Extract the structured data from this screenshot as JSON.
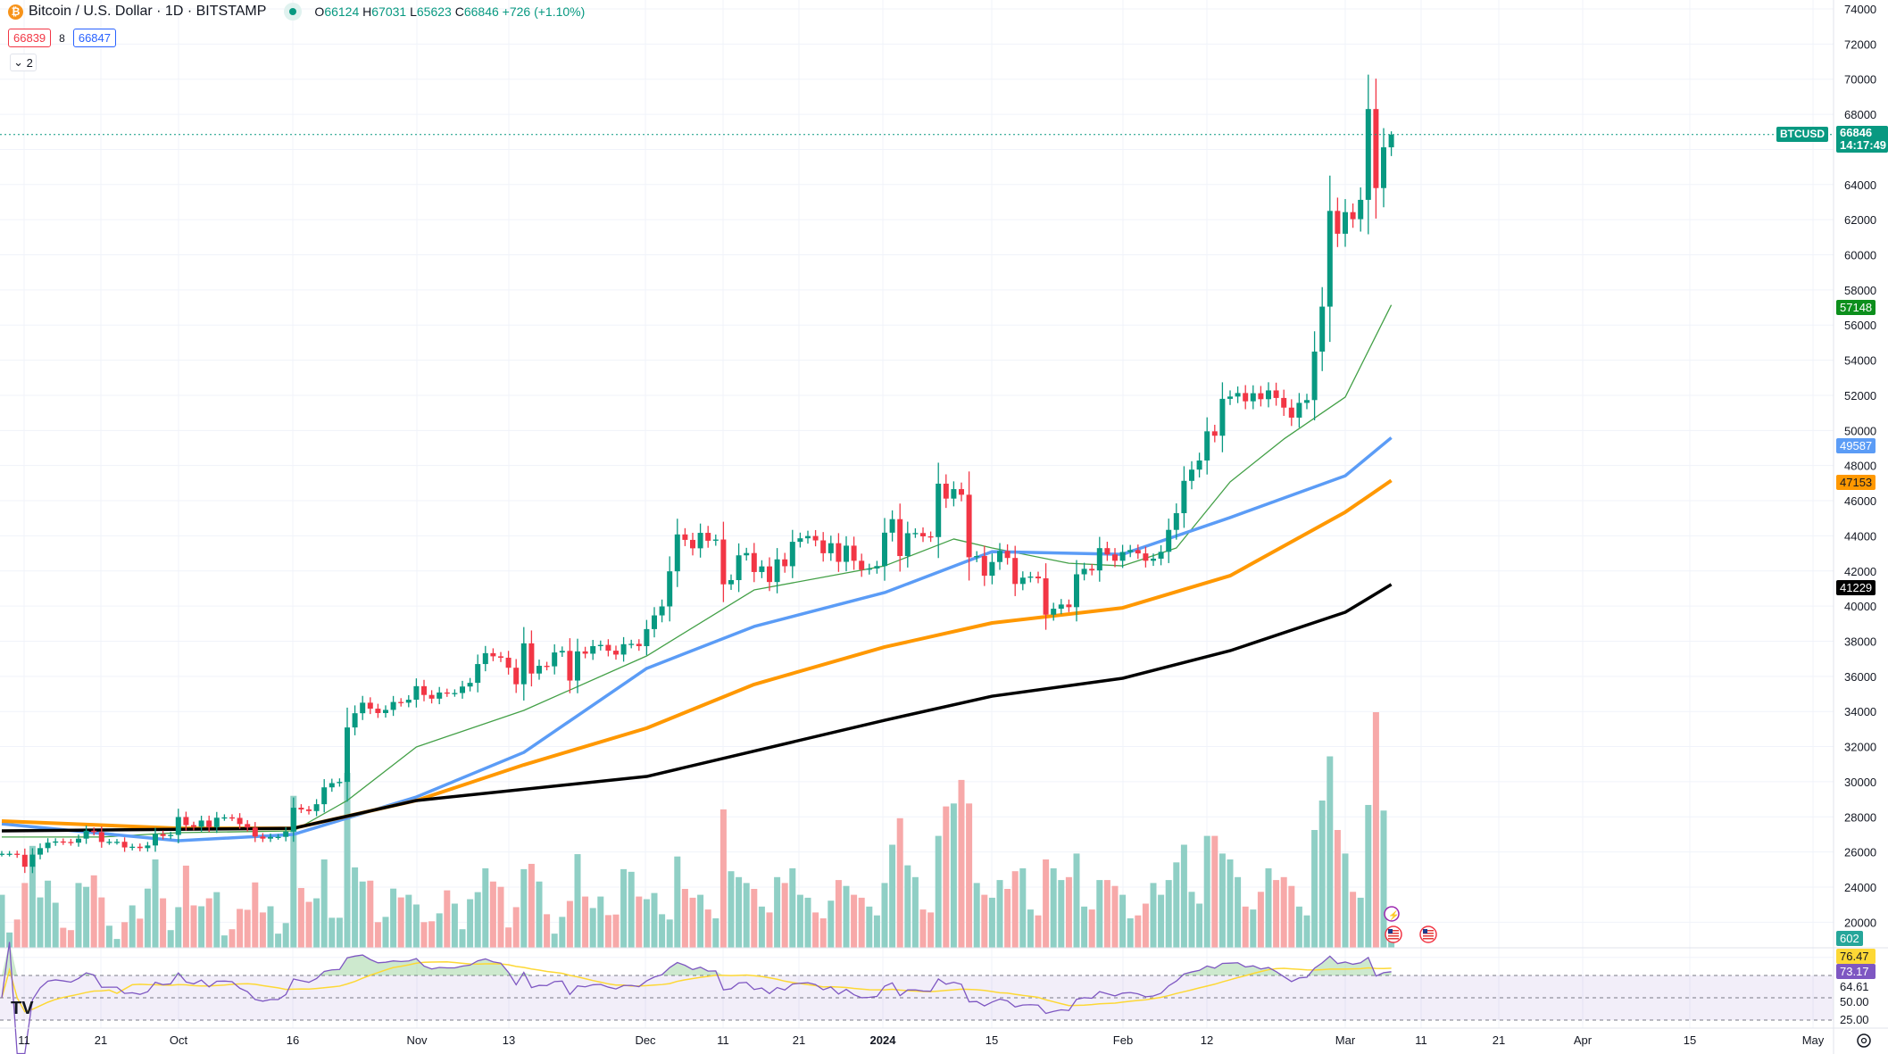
{
  "header": {
    "title": "Bitcoin / U.S. Dollar · 1D · BITSTAMP",
    "symbol_icon": "bitcoin-icon",
    "o_label": "O",
    "o": "66124",
    "h_label": "H",
    "h": "67031",
    "l_label": "L",
    "l": "65623",
    "c_label": "C",
    "c": "66846",
    "change": "+726 (+1.10%)",
    "sell": "66839",
    "spread": "8",
    "buy": "66847",
    "collapse_count": "2"
  },
  "price_axis": {
    "labels": [
      "74000",
      "72000",
      "70000",
      "68000",
      "64000",
      "62000",
      "60000",
      "58000",
      "56000",
      "54000",
      "52000",
      "50000",
      "48000",
      "46000",
      "44000",
      "42000",
      "40000",
      "38000",
      "36000",
      "34000",
      "32000",
      "30000",
      "28000",
      "26000",
      "24000",
      "20000"
    ],
    "last": {
      "symbol": "BTCUSD",
      "price": "66846",
      "countdown": "14:17:49"
    },
    "ma_tags": [
      {
        "value": "57148",
        "color": "#0c8f1c"
      },
      {
        "value": "49587",
        "color": "#5b9cf6"
      },
      {
        "value": "47153",
        "color": "#ff9800"
      },
      {
        "value": "41229",
        "color": "#000000"
      }
    ],
    "volume_tag": "602"
  },
  "rsi_axis": {
    "rsi_ma": "76.47",
    "rsi": "73.17",
    "l1": "64.61",
    "l2": "50.00",
    "l3": "25.00"
  },
  "time_axis": [
    "11",
    "21",
    "Oct",
    "16",
    "Nov",
    "13",
    "Dec",
    "11",
    "21",
    "2024",
    "15",
    "Feb",
    "12",
    "Mar",
    "11",
    "21",
    "Apr",
    "15",
    "May"
  ],
  "colors": {
    "up": "#089981",
    "down": "#f23645",
    "vol_up": "#8fcfc5",
    "vol_down": "#f7a9a9",
    "rsi": "#7e57c2",
    "rsi_ma": "#fdd835"
  },
  "chart_data": {
    "type": "candlestick",
    "start_date": "2023-09-08",
    "ylim": [
      19000,
      74000
    ],
    "close": [
      25900,
      25900,
      25840,
      25160,
      25850,
      26220,
      26530,
      26600,
      26570,
      26530,
      26760,
      27210,
      27130,
      26570,
      26580,
      26580,
      26260,
      26300,
      26220,
      26370,
      27020,
      26910,
      26970,
      27990,
      27530,
      27430,
      27790,
      27410,
      27950,
      27970,
      27940,
      27590,
      27390,
      26880,
      26760,
      26860,
      26860,
      27160,
      28520,
      28420,
      28330,
      28720,
      29680,
      29920,
      29990,
      33090,
      33900,
      34500,
      34160,
      33910,
      34090,
      34540,
      34500,
      34670,
      35440,
      34940,
      34730,
      35080,
      35050,
      35050,
      35420,
      35630,
      36700,
      37320,
      37140,
      37060,
      36490,
      35550,
      37880,
      36160,
      36600,
      36570,
      37360,
      37450,
      35760,
      37420,
      37290,
      37720,
      37790,
      37460,
      37240,
      37830,
      37850,
      37720,
      38690,
      39470,
      39980,
      41980,
      44080,
      43770,
      43290,
      44170,
      43720,
      43790,
      41240,
      41480,
      42890,
      43020,
      41940,
      42260,
      41370,
      42660,
      42270,
      43660,
      43860,
      43990,
      43740,
      43010,
      43580,
      42520,
      43440,
      42580,
      42070,
      42140,
      42280,
      44180,
      44950,
      42850,
      44150,
      44160,
      43970,
      43930,
      46970,
      46120,
      46660,
      46340,
      42780,
      42850,
      41730,
      42510,
      43140,
      42740,
      41260,
      41620,
      41680,
      41580,
      39510,
      39850,
      40090,
      39940,
      41810,
      42120,
      42030,
      43300,
      42940,
      42580,
      43080,
      43190,
      43000,
      42580,
      42700,
      43090,
      44340,
      45290,
      47130,
      47770,
      48290,
      49950,
      49700,
      51800,
      51930,
      52130,
      51660,
      52120,
      51780,
      52280,
      51850,
      51300,
      50730,
      51570,
      51730,
      54490,
      57050,
      62500,
      61200,
      62430,
      62030,
      63130,
      68300,
      63800,
      66120,
      66846
    ],
    "volume": [
      1800,
      520,
      960,
      2200,
      3460,
      1710,
      2280,
      1530,
      680,
      600,
      2200,
      2070,
      2460,
      1710,
      750,
      300,
      870,
      1440,
      990,
      2010,
      3000,
      1680,
      600,
      1380,
      2790,
      1440,
      1410,
      1680,
      1890,
      420,
      630,
      1320,
      1290,
      2220,
      1200,
      1410,
      480,
      840,
      5160,
      2030,
      1560,
      1680,
      3000,
      1020,
      1020,
      5940,
      2730,
      2250,
      2280,
      870,
      1050,
      2010,
      1710,
      1800,
      1470,
      870,
      900,
      1170,
      1950,
      1500,
      630,
      1650,
      1890,
      2700,
      2250,
      2070,
      690,
      1380,
      2670,
      2850,
      2250,
      1140,
      480,
      1050,
      1590,
      3180,
      1740,
      1350,
      1740,
      1110,
      1130,
      2670,
      2580,
      1740,
      1650,
      1860,
      1140,
      960,
      3100,
      2000,
      1700,
      1800,
      1300,
      1000,
      4700,
      2600,
      2400,
      2200,
      2000,
      1400,
      1200,
      2400,
      2200,
      2700,
      1800,
      1700,
      1200,
      1000,
      1600,
      2300,
      2100,
      1800,
      1700,
      1400,
      1100,
      2200,
      3500,
      4400,
      2800,
      2400,
      1300,
      1200,
      3800,
      4800,
      4900,
      5700,
      4900,
      2200,
      1800,
      1700,
      2300,
      2000,
      2600,
      2700,
      1300,
      1100,
      3000,
      2700,
      2300,
      2400,
      3200,
      1400,
      1300,
      2300,
      2300,
      2100,
      1800,
      1000,
      1100,
      1500,
      2200,
      1800,
      2300,
      2900,
      3500,
      1900,
      1500,
      3800,
      3800,
      3200,
      3000,
      2400,
      1400,
      1300,
      1900,
      2700,
      2300,
      2400,
      2100,
      1400,
      1100,
      4000,
      5000,
      6500,
      4000,
      3200,
      1900,
      1700,
      4850,
      8000,
      4660,
      602
    ],
    "moving_averages": [
      {
        "color": "#43a047",
        "value": "57148",
        "points": [
          [
            "2023-09-08",
            26850
          ],
          [
            "2023-09-21",
            26850
          ],
          [
            "2023-10-01",
            27100
          ],
          [
            "2023-10-16",
            27200
          ],
          [
            "2023-10-23",
            28930
          ],
          [
            "2023-11-01",
            31980
          ],
          [
            "2023-11-15",
            34060
          ],
          [
            "2023-12-01",
            37160
          ],
          [
            "2023-12-15",
            40920
          ],
          [
            "2024-01-01",
            42290
          ],
          [
            "2024-01-10",
            43820
          ],
          [
            "2024-01-15",
            43310
          ],
          [
            "2024-01-25",
            42440
          ],
          [
            "2024-02-01",
            42290
          ],
          [
            "2024-02-08",
            43310
          ],
          [
            "2024-02-15",
            47070
          ],
          [
            "2024-02-22",
            49510
          ],
          [
            "2024-03-01",
            51900
          ],
          [
            "2024-03-07",
            57148
          ]
        ]
      },
      {
        "color": "#5b9cf6",
        "value": "49587",
        "points": [
          [
            "2023-09-08",
            27600
          ],
          [
            "2023-10-01",
            26640
          ],
          [
            "2023-10-16",
            27000
          ],
          [
            "2023-11-01",
            29130
          ],
          [
            "2023-11-15",
            31670
          ],
          [
            "2023-12-01",
            36450
          ],
          [
            "2023-12-15",
            38840
          ],
          [
            "2024-01-01",
            40770
          ],
          [
            "2024-01-15",
            43100
          ],
          [
            "2024-02-01",
            42950
          ],
          [
            "2024-02-15",
            45040
          ],
          [
            "2024-03-01",
            47420
          ],
          [
            "2024-03-07",
            49587
          ]
        ]
      },
      {
        "color": "#ff9800",
        "value": "47153",
        "points": [
          [
            "2023-09-08",
            27760
          ],
          [
            "2023-10-01",
            27350
          ],
          [
            "2023-10-16",
            27350
          ],
          [
            "2023-11-01",
            28930
          ],
          [
            "2023-11-15",
            30960
          ],
          [
            "2023-12-01",
            33050
          ],
          [
            "2023-12-15",
            35540
          ],
          [
            "2024-01-01",
            37670
          ],
          [
            "2024-01-15",
            39040
          ],
          [
            "2024-02-01",
            39900
          ],
          [
            "2024-02-15",
            41730
          ],
          [
            "2024-03-01",
            45350
          ],
          [
            "2024-03-07",
            47153
          ]
        ]
      },
      {
        "color": "#000000",
        "value": "41229",
        "points": [
          [
            "2023-09-08",
            27200
          ],
          [
            "2023-10-16",
            27350
          ],
          [
            "2023-11-01",
            28930
          ],
          [
            "2023-12-01",
            30300
          ],
          [
            "2024-01-01",
            33500
          ],
          [
            "2024-01-15",
            34870
          ],
          [
            "2024-02-01",
            35890
          ],
          [
            "2024-02-15",
            37460
          ],
          [
            "2024-03-01",
            39650
          ],
          [
            "2024-03-07",
            41229
          ]
        ]
      }
    ],
    "rsi_levels": [
      70,
      50,
      30
    ],
    "grid": true
  }
}
